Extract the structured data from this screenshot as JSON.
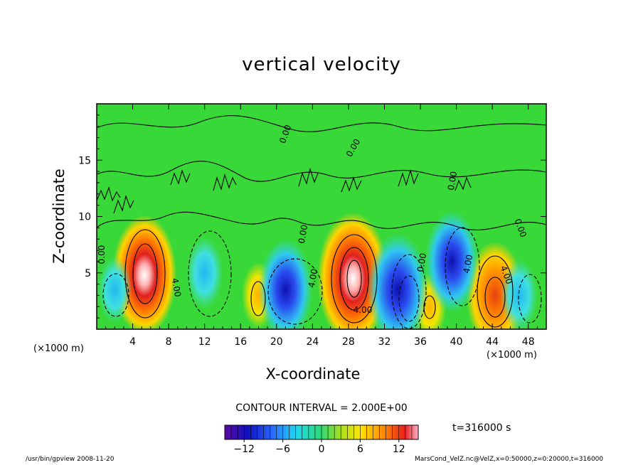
{
  "chart_data": {
    "type": "heatmap",
    "title": "vertical velocity",
    "xlabel": "X-coordinate",
    "ylabel": "Z-coordinate",
    "x_unit_left": "(×1000 m)",
    "x_unit_right": "(×1000 m)",
    "xlim": [
      0,
      50
    ],
    "ylim": [
      0,
      20
    ],
    "x_ticks": [
      "4",
      "8",
      "12",
      "16",
      "20",
      "24",
      "28",
      "32",
      "36",
      "40",
      "44",
      "48"
    ],
    "y_ticks": [
      "5",
      "10",
      "15"
    ],
    "contour_interval": "CONTOUR INTERVAL = 2.000E+00",
    "time": "t=316000 s",
    "colorbar": {
      "range": [
        -15,
        15
      ],
      "tick_labels": [
        "−12",
        "−6",
        "0",
        "6",
        "12"
      ],
      "tick_values": [
        -12,
        -6,
        0,
        6,
        12
      ]
    },
    "contour_labels": [
      "0.00",
      "0.00",
      "0.00",
      "0.00",
      "0.00",
      "4.00",
      "4.00",
      "4.00",
      "4.00",
      "4.00",
      "0.00",
      "0.00"
    ],
    "cells": [
      {
        "x": 5.3,
        "z": 4.8,
        "w": 13
      },
      {
        "x": 28.5,
        "z": 4.5,
        "w": 15
      },
      {
        "x": 44.3,
        "z": 3.0,
        "w": 11
      },
      {
        "x": 18.0,
        "z": 3.0,
        "w": 4
      },
      {
        "x": 37.0,
        "z": 2.0,
        "w": 4
      },
      {
        "x": 21.0,
        "z": 3.5,
        "w": -10
      },
      {
        "x": 33.5,
        "z": 3.5,
        "w": -12
      },
      {
        "x": 39.5,
        "z": 6.0,
        "w": -10
      },
      {
        "x": 2.0,
        "z": 3.5,
        "w": -4
      },
      {
        "x": 12.0,
        "z": 5.0,
        "w": -5
      },
      {
        "x": 47.0,
        "z": 3.0,
        "w": -5
      }
    ]
  },
  "footer": {
    "left": "/usr/bin/gpview   2008-11-20",
    "right": "MarsCond_VelZ.nc@VelZ,x=0:50000,z=0:20000,t=316000"
  }
}
